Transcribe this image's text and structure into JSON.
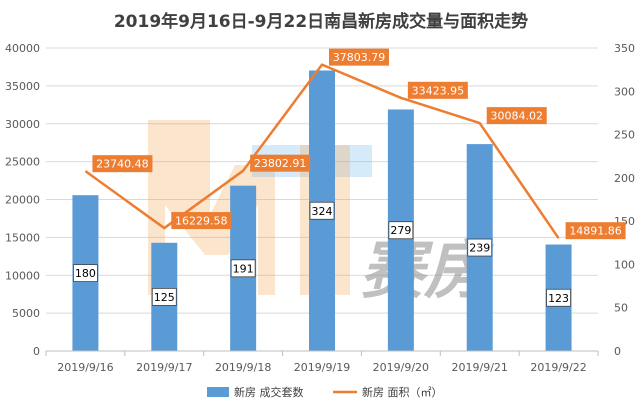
{
  "chart_data": {
    "type": "bar",
    "title": "2019年9月16日-9月22日南昌新房成交量与面积走势",
    "categories": [
      "2019/9/16",
      "2019/9/17",
      "2019/9/18",
      "2019/9/19",
      "2019/9/20",
      "2019/9/21",
      "2019/9/22"
    ],
    "ylim_left": [
      0,
      40000
    ],
    "yticks_left": [
      0,
      5000,
      10000,
      15000,
      20000,
      25000,
      30000,
      35000,
      40000
    ],
    "ylim_right": [
      0,
      350
    ],
    "yticks_right": [
      0,
      50,
      100,
      150,
      200,
      250,
      300,
      350
    ],
    "series": [
      {
        "name": "新房 成交套数",
        "type": "bar",
        "axis": "right",
        "color": "#5b9bd5",
        "values": [
          180,
          125,
          191,
          324,
          279,
          239,
          123
        ],
        "labels": [
          "180",
          "125",
          "191",
          "324",
          "279",
          "239",
          "123"
        ]
      },
      {
        "name": "新房 面积（㎡）",
        "type": "line",
        "axis": "left",
        "color": "#ed7d31",
        "values": [
          23740.48,
          16229.58,
          23802.91,
          37803.79,
          33423.95,
          30084.02,
          14891.86
        ],
        "labels": [
          "23740.48",
          "16229.58",
          "23802.91",
          "37803.79",
          "33423.95",
          "30084.02",
          "14891.86"
        ]
      }
    ],
    "legend_position": "bottom",
    "grid": true
  },
  "watermark": {
    "text": "赛房",
    "color": "#f5a04a"
  }
}
